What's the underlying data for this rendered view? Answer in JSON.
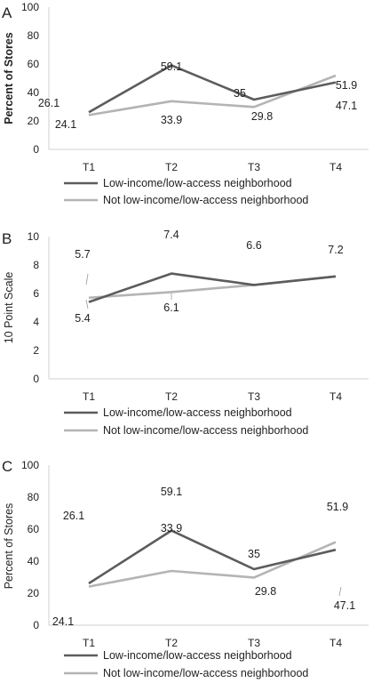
{
  "colors": {
    "low": "#5c5c5c",
    "not": "#b4b4b4",
    "axis": "#d0d0d0"
  },
  "chart_data": [
    {
      "panel": "A",
      "type": "line",
      "ylabel": "Percent of Stores",
      "ylabel_bold": true,
      "categories": [
        "T1",
        "T2",
        "T3",
        "T4"
      ],
      "yticks": [
        "0",
        "20",
        "40",
        "60",
        "80",
        "100"
      ],
      "ylim": [
        0,
        100
      ],
      "series": [
        {
          "name": "Low-income/low-access neighborhood",
          "color": "#5c5c5c",
          "values": [
            26.1,
            59.1,
            35,
            47.1
          ]
        },
        {
          "name": "Not low-income/low-access neighborhood",
          "color": "#b4b4b4",
          "values": [
            24.1,
            33.9,
            29.8,
            51.9
          ]
        }
      ],
      "legend": "bottom"
    },
    {
      "panel": "B",
      "type": "line",
      "ylabel": "10 Point Scale",
      "ylabel_bold": false,
      "categories": [
        "T1",
        "T2",
        "T3",
        "T4"
      ],
      "yticks": [
        "0",
        "2",
        "4",
        "6",
        "8",
        "10"
      ],
      "ylim": [
        0,
        10
      ],
      "series": [
        {
          "name": "Low-income/low-access neighborhood",
          "color": "#5c5c5c",
          "values": [
            5.4,
            7.4,
            6.6,
            7.2
          ]
        },
        {
          "name": "Not low-income/low-access neighborhood",
          "color": "#b4b4b4",
          "values": [
            5.7,
            6.1,
            6.6,
            7.2
          ]
        }
      ],
      "point_labels": [
        "5.7",
        "7.4",
        "6.6",
        "7.2",
        "5.4",
        "6.1"
      ],
      "legend": "bottom"
    },
    {
      "panel": "C",
      "type": "line",
      "ylabel": "Percent of Stores",
      "ylabel_bold": false,
      "categories": [
        "T1",
        "T2",
        "T3",
        "T4"
      ],
      "yticks": [
        "0",
        "20",
        "40",
        "60",
        "80",
        "100"
      ],
      "ylim": [
        0,
        100
      ],
      "series": [
        {
          "name": "Low-income/low-access neighborhood",
          "color": "#5c5c5c",
          "values": [
            26.1,
            59.1,
            35,
            47.1
          ]
        },
        {
          "name": "Not low-income/low-access neighborhood",
          "color": "#b4b4b4",
          "values": [
            24.1,
            33.9,
            29.8,
            51.9
          ]
        }
      ],
      "legend": "bottom"
    }
  ]
}
